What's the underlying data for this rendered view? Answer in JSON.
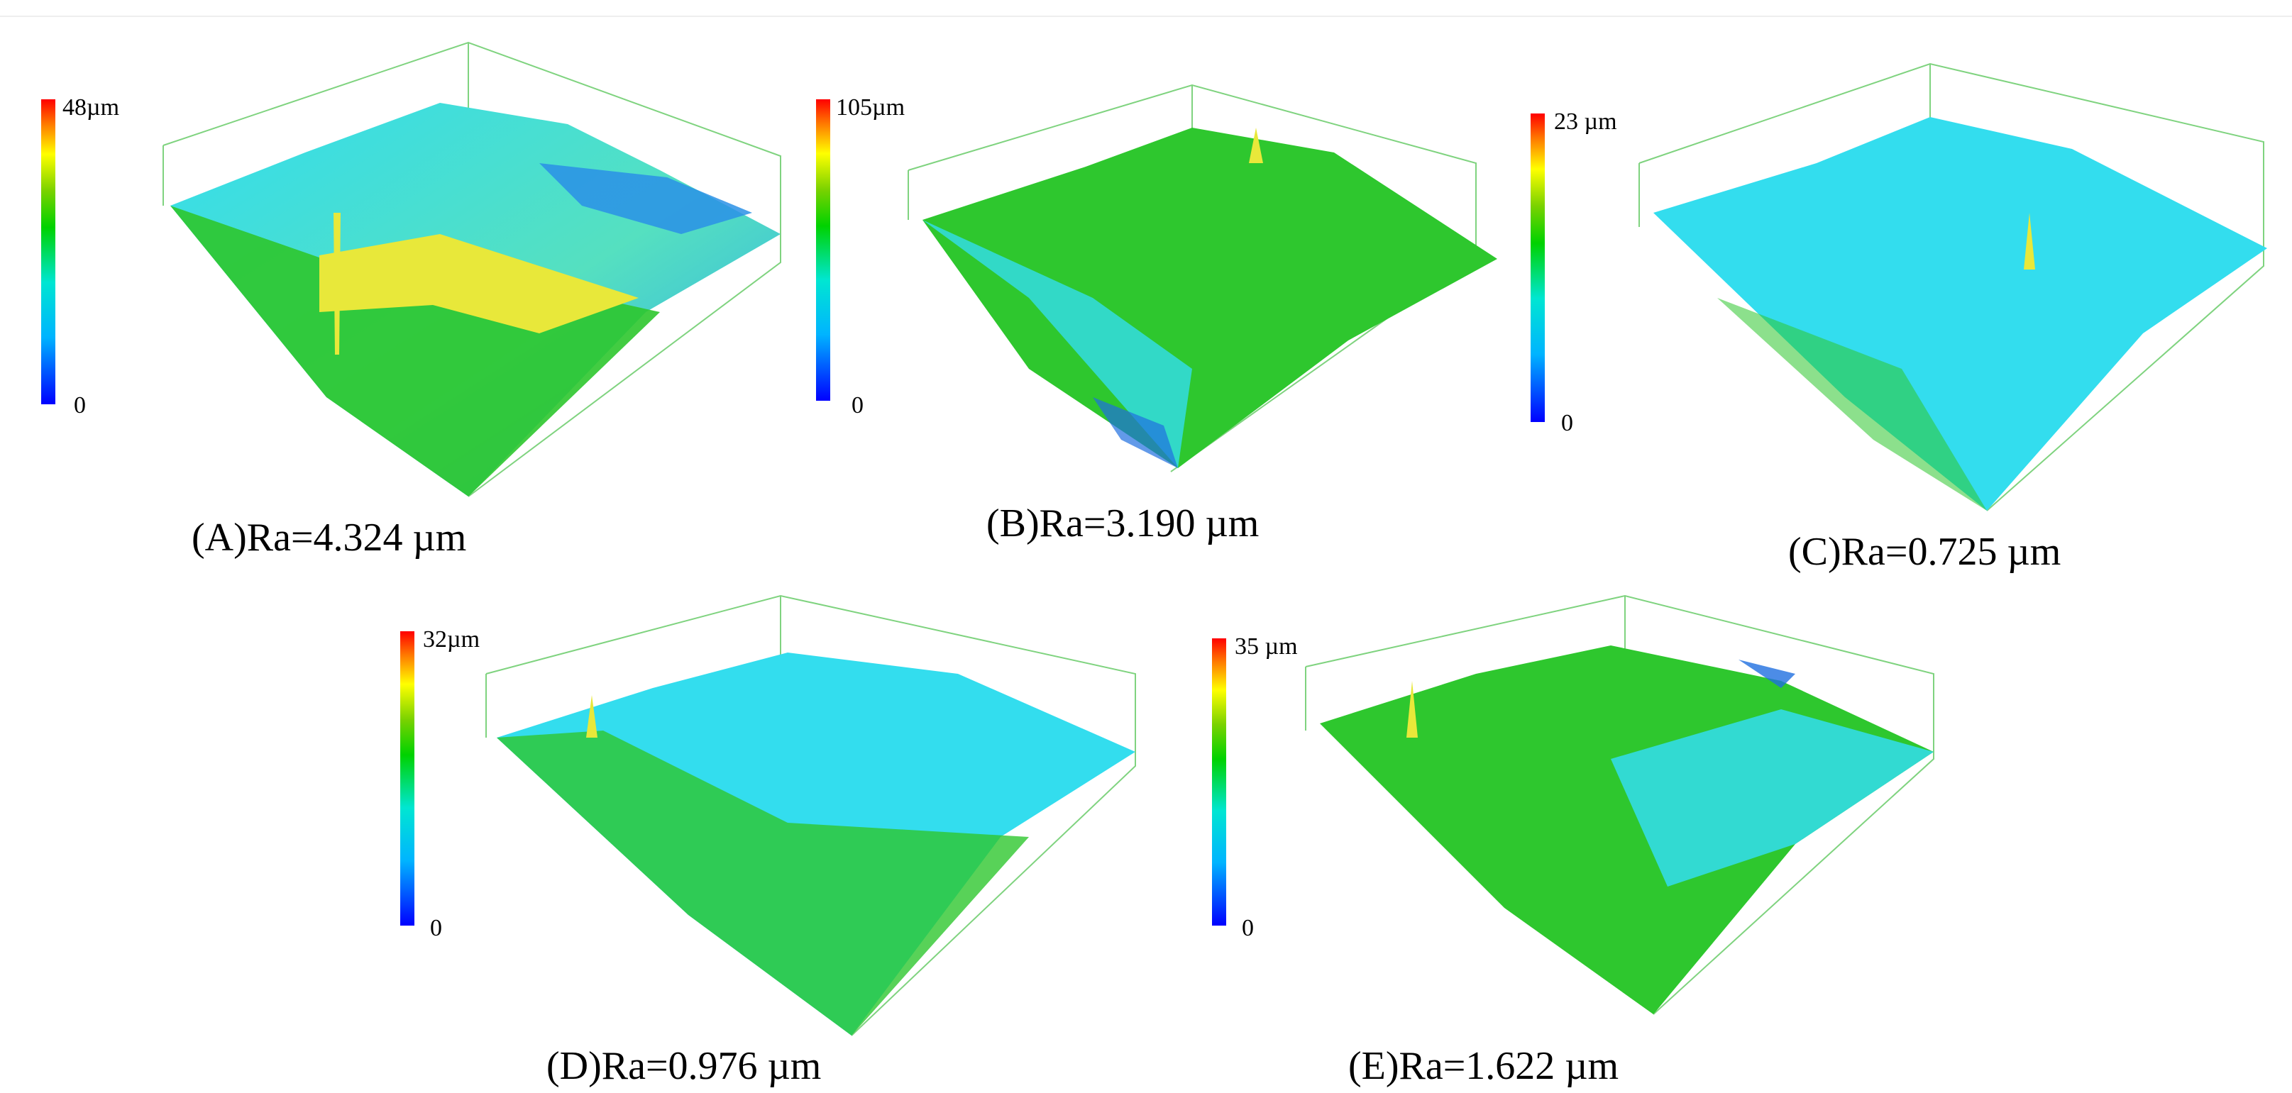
{
  "figure": {
    "panels": [
      {
        "id": "A",
        "caption": "(A)Ra=4.324 µm",
        "scale_max": "48µm",
        "scale_min": "0"
      },
      {
        "id": "B",
        "caption": "(B)Ra=3.190 µm",
        "scale_max": "105µm",
        "scale_min": "0"
      },
      {
        "id": "C",
        "caption": "(C)Ra=0.725 µm",
        "scale_max": "23 µm",
        "scale_min": "0"
      },
      {
        "id": "D",
        "caption": "(D)Ra=0.976 µm",
        "scale_max": "32µm",
        "scale_min": "0"
      },
      {
        "id": "E",
        "caption": "(E)Ra=1.622 µm",
        "scale_max": "35 µm",
        "scale_min": "0"
      }
    ],
    "colors": {
      "blue": "#1f6fe0",
      "cyan": "#33ddee",
      "green": "#2ec72e",
      "yellow": "#e8e83a",
      "red": "#ff2200",
      "box_line": "#7fd37f"
    }
  }
}
